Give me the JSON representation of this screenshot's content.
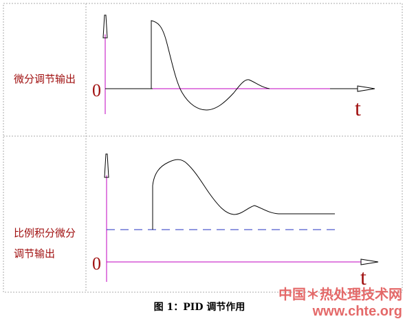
{
  "panels": [
    {
      "label": [
        "微分调节输出"
      ],
      "zero": "0",
      "axis": "t"
    },
    {
      "label": [
        "比例积分微分",
        "调节输出"
      ],
      "zero": "0",
      "axis": "t"
    }
  ],
  "caption": "图 1：PID 调节作用",
  "watermark": {
    "site": "中国＊热处理技术网",
    "url": "www.chte.org"
  }
}
